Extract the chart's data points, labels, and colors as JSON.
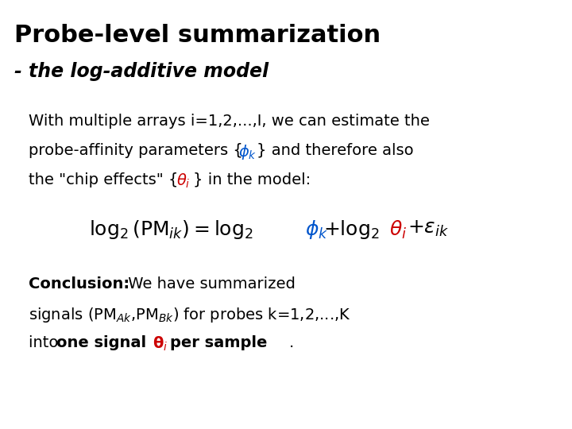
{
  "bg_color": "#ffffff",
  "title": "Probe-level summarization",
  "subtitle": "- the log-additive model",
  "title_fontsize": 22,
  "subtitle_fontsize": 17,
  "body_fontsize": 14,
  "equation_fontsize": 18,
  "conclusion_fontsize": 14
}
